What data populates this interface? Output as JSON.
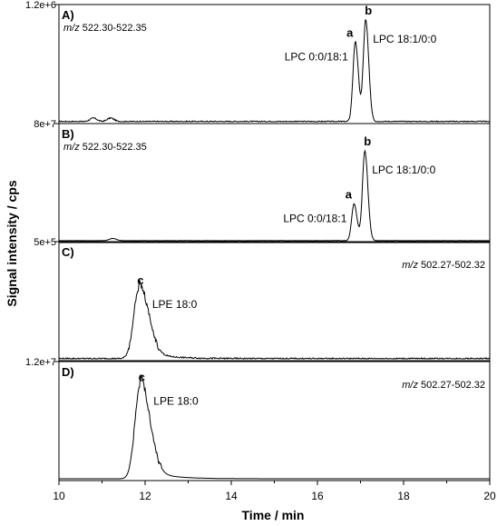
{
  "chart_data": {
    "type": "line",
    "xlabel": "Time / min",
    "ylabel": "Signal intensity / cps",
    "xlim": [
      10,
      20
    ],
    "xticks": [
      "10",
      "12",
      "14",
      "16",
      "18",
      "20"
    ],
    "colors": {
      "line": "#000000",
      "axis": "#000000",
      "background": "#ffffff"
    },
    "grid": false,
    "panels": [
      {
        "label": "A)",
        "ytick_label": "1.2e+6",
        "mz_prefix": "m/z",
        "mz_range": "522.30-522.35",
        "mz_position": "left",
        "peaks": [
          {
            "letter": "a",
            "text": "LPC 0:0/18:1",
            "time": 16.88,
            "rel_height": 0.69
          },
          {
            "letter": "b",
            "text": "LPC 18:1/0:0",
            "time": 17.12,
            "rel_height": 0.88
          }
        ],
        "noise_bumps": [
          {
            "time": 10.8,
            "rel_height": 0.03
          },
          {
            "time": 11.2,
            "rel_height": 0.03
          }
        ],
        "noise_level": 0.01
      },
      {
        "label": "B)",
        "ytick_label": "8e+7",
        "mz_prefix": "m/z",
        "mz_range": "522.30-522.35",
        "mz_position": "left",
        "peaks": [
          {
            "letter": "a",
            "text": "LPC 0:0/18:1",
            "time": 16.85,
            "rel_height": 0.32
          },
          {
            "letter": "b",
            "text": "LPC 18:1/0:0",
            "time": 17.1,
            "rel_height": 0.78
          }
        ],
        "noise_bumps": [
          {
            "time": 11.25,
            "rel_height": 0.02
          }
        ],
        "noise_level": 0.003
      },
      {
        "label": "C)",
        "ytick_label": "5e+5",
        "mz_prefix": "m/z",
        "mz_range": "502.27-502.32",
        "mz_position": "right",
        "peaks": [
          {
            "letter": "c",
            "text": "LPE 18:0",
            "time": 11.85,
            "rel_height": 0.6
          }
        ],
        "noise_bumps": [],
        "noise_level": 0.012
      },
      {
        "label": "D)",
        "ytick_label": "1.2e+7",
        "mz_prefix": "m/z",
        "mz_range": "502.27-502.32",
        "mz_position": "right",
        "peaks": [
          {
            "letter": "c",
            "text": "LPE 18:0",
            "time": 11.88,
            "rel_height": 0.8
          }
        ],
        "noise_bumps": [],
        "noise_level": 0.0
      }
    ]
  }
}
